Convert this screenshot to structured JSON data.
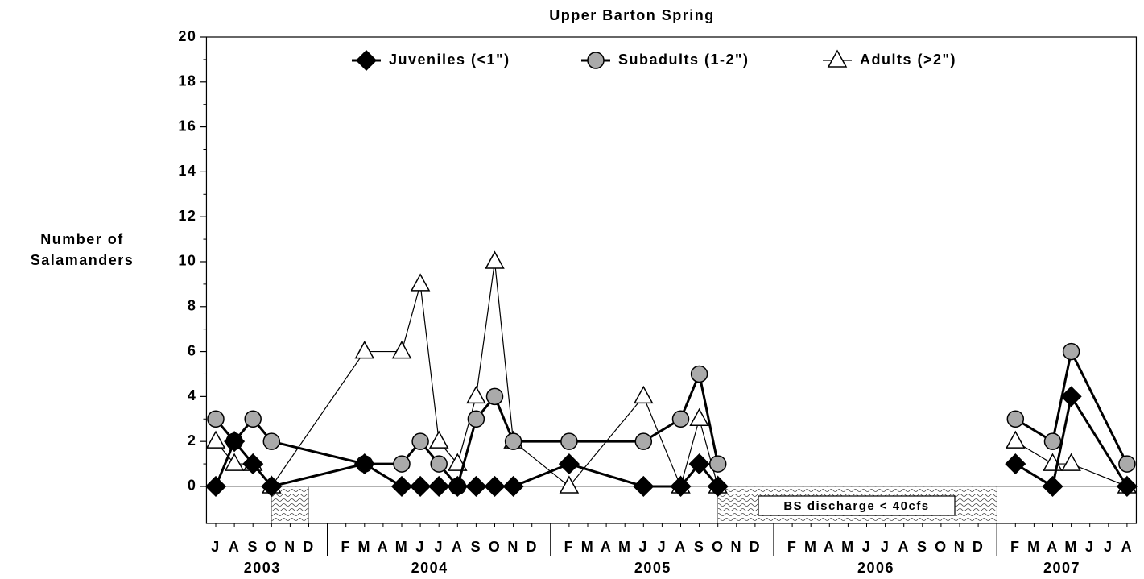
{
  "chart_data": {
    "type": "line",
    "title": "Upper Barton Spring",
    "y_label": [
      "Number of",
      "Salamanders"
    ],
    "categories": [
      "J",
      "A",
      "S",
      "O",
      "N",
      "D",
      null,
      "F",
      "M",
      "A",
      "M",
      "J",
      "J",
      "A",
      "S",
      "O",
      "N",
      "D",
      null,
      "F",
      "M",
      "A",
      "M",
      "J",
      "J",
      "A",
      "S",
      "O",
      "N",
      "D",
      null,
      "F",
      "M",
      "A",
      "M",
      "J",
      "J",
      "A",
      "S",
      "O",
      "N",
      "D",
      null,
      "F",
      "M",
      "A",
      "M",
      "J",
      "J",
      "A"
    ],
    "years": [
      "2003",
      "2004",
      "2005",
      "2006",
      "2007"
    ],
    "ylim": [
      -1.65,
      20
    ],
    "yticks": [
      0,
      2,
      4,
      6,
      8,
      10,
      12,
      14,
      16,
      18,
      20
    ],
    "legend": "top",
    "annotation": "BS discharge < 40cfs",
    "series": [
      {
        "name": "Adults (>2\")",
        "color": "#ffffff",
        "marker": "triangle",
        "values": [
          2,
          1,
          1,
          0,
          null,
          null,
          null,
          null,
          6,
          null,
          6,
          9,
          2,
          1,
          4,
          10,
          2,
          null,
          null,
          0,
          null,
          null,
          null,
          4,
          null,
          0,
          3,
          0,
          null,
          null,
          null,
          null,
          null,
          null,
          null,
          null,
          null,
          null,
          null,
          null,
          null,
          null,
          null,
          2,
          null,
          1,
          1,
          null,
          null,
          0
        ]
      },
      {
        "name": "Subadults (1-2\")",
        "color": "#aaaaaa",
        "marker": "circle",
        "values": [
          3,
          2,
          3,
          2,
          null,
          null,
          null,
          null,
          1,
          null,
          1,
          2,
          1,
          0,
          3,
          4,
          2,
          null,
          null,
          2,
          null,
          null,
          null,
          2,
          null,
          3,
          5,
          1,
          null,
          null,
          null,
          null,
          null,
          null,
          null,
          null,
          null,
          null,
          null,
          null,
          null,
          null,
          null,
          3,
          null,
          2,
          6,
          null,
          null,
          1
        ]
      },
      {
        "name": "Juveniles (<1\")",
        "color": "#000000",
        "marker": "diamond",
        "values": [
          0,
          2,
          1,
          0,
          null,
          null,
          null,
          null,
          1,
          null,
          0,
          0,
          0,
          0,
          0,
          0,
          0,
          null,
          null,
          1,
          null,
          null,
          null,
          0,
          null,
          0,
          1,
          0,
          null,
          null,
          null,
          null,
          null,
          null,
          null,
          null,
          null,
          null,
          null,
          null,
          null,
          null,
          null,
          1,
          null,
          0,
          4,
          null,
          null,
          0
        ]
      }
    ]
  }
}
